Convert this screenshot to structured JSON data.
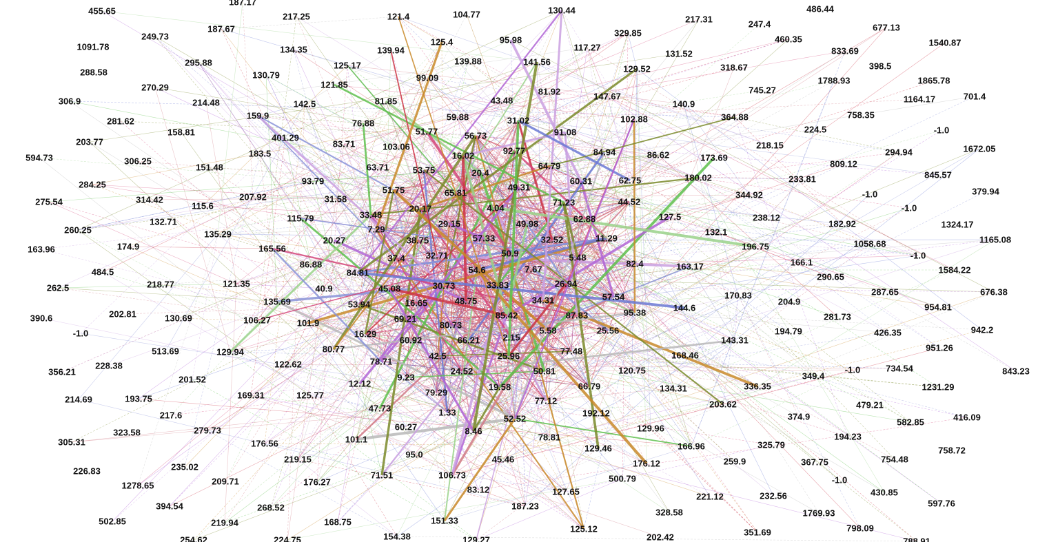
{
  "graph": {
    "edge_colors": [
      "#cc3344",
      "#d4477a",
      "#d07a86",
      "#6b79d4",
      "#8a93d8",
      "#5ec04c",
      "#9ad28a",
      "#b9b9b9",
      "#c98a2a",
      "#b266d6",
      "#caa0e0",
      "#7a8a2a"
    ],
    "nodes": [
      {
        "id": "n1",
        "label": "455.65"
      },
      {
        "id": "n2",
        "label": "187.17"
      },
      {
        "id": "n3",
        "label": "217.25"
      },
      {
        "id": "n4",
        "label": "121.4"
      },
      {
        "id": "n5",
        "label": "104.77"
      },
      {
        "id": "n6",
        "label": "130.44"
      },
      {
        "id": "n7",
        "label": "217.31"
      },
      {
        "id": "n8",
        "label": "486.44"
      },
      {
        "id": "n9",
        "label": "1091.78"
      },
      {
        "id": "n10",
        "label": "249.73"
      },
      {
        "id": "n11",
        "label": "187.67"
      },
      {
        "id": "n12",
        "label": "134.35"
      },
      {
        "id": "n13",
        "label": "139.94"
      },
      {
        "id": "n14",
        "label": "125.4"
      },
      {
        "id": "n15",
        "label": "95.98"
      },
      {
        "id": "n16",
        "label": "117.27"
      },
      {
        "id": "n17",
        "label": "329.85"
      },
      {
        "id": "n18",
        "label": "247.4"
      },
      {
        "id": "n19",
        "label": "460.35"
      },
      {
        "id": "n20",
        "label": "677.13"
      },
      {
        "id": "n21",
        "label": "1540.87"
      },
      {
        "id": "n22",
        "label": "288.58"
      },
      {
        "id": "n23",
        "label": "295.88"
      },
      {
        "id": "n24",
        "label": "125.17"
      },
      {
        "id": "n25",
        "label": "139.88"
      },
      {
        "id": "n26",
        "label": "141.56"
      },
      {
        "id": "n27",
        "label": "131.52"
      },
      {
        "id": "n28",
        "label": "833.69"
      },
      {
        "id": "n29",
        "label": "130.79"
      },
      {
        "id": "n30",
        "label": "99.09"
      },
      {
        "id": "n31",
        "label": "129.52"
      },
      {
        "id": "n32",
        "label": "318.67"
      },
      {
        "id": "n33",
        "label": "398.5"
      },
      {
        "id": "n34",
        "label": "270.29"
      },
      {
        "id": "n35",
        "label": "121.85"
      },
      {
        "id": "n36",
        "label": "81.92"
      },
      {
        "id": "n37",
        "label": "1788.93"
      },
      {
        "id": "n38",
        "label": "1865.78"
      },
      {
        "id": "n39",
        "label": "306.9"
      },
      {
        "id": "n40",
        "label": "214.48"
      },
      {
        "id": "n41",
        "label": "142.5"
      },
      {
        "id": "n42",
        "label": "81.85"
      },
      {
        "id": "n43",
        "label": "43.48"
      },
      {
        "id": "n44",
        "label": "147.67"
      },
      {
        "id": "n45",
        "label": "745.27"
      },
      {
        "id": "n46",
        "label": "1164.17"
      },
      {
        "id": "n47",
        "label": "701.4"
      },
      {
        "id": "n48",
        "label": "159.9"
      },
      {
        "id": "n49",
        "label": "140.9"
      },
      {
        "id": "n50",
        "label": "281.62"
      },
      {
        "id": "n51",
        "label": "59.88"
      },
      {
        "id": "n52",
        "label": "102.88"
      },
      {
        "id": "n53",
        "label": "364.88"
      },
      {
        "id": "n54",
        "label": "758.35"
      },
      {
        "id": "n55",
        "label": "76.88"
      },
      {
        "id": "n56",
        "label": "31.02"
      },
      {
        "id": "n57",
        "label": "158.81"
      },
      {
        "id": "n58",
        "label": "51.77"
      },
      {
        "id": "n59",
        "label": "56.73"
      },
      {
        "id": "n60",
        "label": "91.08"
      },
      {
        "id": "n61",
        "label": "224.5"
      },
      {
        "id": "n62",
        "label": "-1.0"
      },
      {
        "id": "n63",
        "label": "203.77"
      },
      {
        "id": "n64",
        "label": "401.29"
      },
      {
        "id": "n65",
        "label": "83.71"
      },
      {
        "id": "n66",
        "label": "103.06"
      },
      {
        "id": "n67",
        "label": "218.15"
      },
      {
        "id": "n68",
        "label": "594.73"
      },
      {
        "id": "n69",
        "label": "183.5"
      },
      {
        "id": "n70",
        "label": "92.77"
      },
      {
        "id": "n71",
        "label": "84.94"
      },
      {
        "id": "n72",
        "label": "86.62"
      },
      {
        "id": "n73",
        "label": "294.94"
      },
      {
        "id": "n74",
        "label": "1672.05"
      },
      {
        "id": "n75",
        "label": "306.25"
      },
      {
        "id": "n76",
        "label": "16.02"
      },
      {
        "id": "n77",
        "label": "173.69"
      },
      {
        "id": "n78",
        "label": "151.48"
      },
      {
        "id": "n79",
        "label": "63.71"
      },
      {
        "id": "n80",
        "label": "53.75"
      },
      {
        "id": "n81",
        "label": "64.79"
      },
      {
        "id": "n82",
        "label": "809.12"
      },
      {
        "id": "n83",
        "label": "20.4"
      },
      {
        "id": "n84",
        "label": "845.57"
      },
      {
        "id": "n85",
        "label": "284.25"
      },
      {
        "id": "n86",
        "label": "93.79"
      },
      {
        "id": "n87",
        "label": "60.31"
      },
      {
        "id": "n88",
        "label": "62.75"
      },
      {
        "id": "n89",
        "label": "180.02"
      },
      {
        "id": "n90",
        "label": "233.81"
      },
      {
        "id": "n91",
        "label": "49.31"
      },
      {
        "id": "n92",
        "label": "51.75"
      },
      {
        "id": "n93",
        "label": "65.81"
      },
      {
        "id": "n94",
        "label": "344.92"
      },
      {
        "id": "n95",
        "label": "-1.0"
      },
      {
        "id": "n96",
        "label": "379.94"
      },
      {
        "id": "n97",
        "label": "275.54"
      },
      {
        "id": "n98",
        "label": "314.42"
      },
      {
        "id": "n99",
        "label": "207.92"
      },
      {
        "id": "n100",
        "label": "31.58"
      },
      {
        "id": "n101",
        "label": "71.23"
      },
      {
        "id": "n102",
        "label": "44.52"
      },
      {
        "id": "n103",
        "label": "115.6"
      },
      {
        "id": "n104",
        "label": "20.17"
      },
      {
        "id": "n105",
        "label": "4.04"
      },
      {
        "id": "n106",
        "label": "-1.0"
      },
      {
        "id": "n107",
        "label": "33.48"
      },
      {
        "id": "n108",
        "label": "127.5"
      },
      {
        "id": "n109",
        "label": "238.12"
      },
      {
        "id": "n110",
        "label": "132.71"
      },
      {
        "id": "n111",
        "label": "115.79"
      },
      {
        "id": "n112",
        "label": "62.88"
      },
      {
        "id": "n113",
        "label": "182.92"
      },
      {
        "id": "n114",
        "label": "1324.17"
      },
      {
        "id": "n115",
        "label": "29.15"
      },
      {
        "id": "n116",
        "label": "49.98"
      },
      {
        "id": "n117",
        "label": "132.1"
      },
      {
        "id": "n118",
        "label": "260.25"
      },
      {
        "id": "n119",
        "label": "135.29"
      },
      {
        "id": "n120",
        "label": "7.29"
      },
      {
        "id": "n121",
        "label": "32.52"
      },
      {
        "id": "n122",
        "label": "11.29"
      },
      {
        "id": "n123",
        "label": "1165.08"
      },
      {
        "id": "n124",
        "label": "20.27"
      },
      {
        "id": "n125",
        "label": "57.33"
      },
      {
        "id": "n126",
        "label": "38.75"
      },
      {
        "id": "n127",
        "label": "196.75"
      },
      {
        "id": "n128",
        "label": "1058.68"
      },
      {
        "id": "n129",
        "label": "163.96"
      },
      {
        "id": "n130",
        "label": "174.9"
      },
      {
        "id": "n131",
        "label": "165.56"
      },
      {
        "id": "n132",
        "label": "50.9"
      },
      {
        "id": "n133",
        "label": "5.48"
      },
      {
        "id": "n134",
        "label": "-1.0"
      },
      {
        "id": "n135",
        "label": "37.4"
      },
      {
        "id": "n136",
        "label": "32.71"
      },
      {
        "id": "n137",
        "label": "82.4"
      },
      {
        "id": "n138",
        "label": "166.1"
      },
      {
        "id": "n139",
        "label": "86.88"
      },
      {
        "id": "n140",
        "label": "163.17"
      },
      {
        "id": "n141",
        "label": "1584.22"
      },
      {
        "id": "n142",
        "label": "484.5"
      },
      {
        "id": "n143",
        "label": "54.6"
      },
      {
        "id": "n144",
        "label": "7.67"
      },
      {
        "id": "n145",
        "label": "84.81"
      },
      {
        "id": "n146",
        "label": "290.65"
      },
      {
        "id": "n147",
        "label": "262.5"
      },
      {
        "id": "n148",
        "label": "218.77"
      },
      {
        "id": "n149",
        "label": "121.35"
      },
      {
        "id": "n150",
        "label": "40.9"
      },
      {
        "id": "n151",
        "label": "45.08"
      },
      {
        "id": "n152",
        "label": "30.73"
      },
      {
        "id": "n153",
        "label": "33.83"
      },
      {
        "id": "n154",
        "label": "26.94"
      },
      {
        "id": "n155",
        "label": "676.38"
      },
      {
        "id": "n156",
        "label": "135.69"
      },
      {
        "id": "n157",
        "label": "57.54"
      },
      {
        "id": "n158",
        "label": "170.83"
      },
      {
        "id": "n159",
        "label": "287.65"
      },
      {
        "id": "n160",
        "label": "53.94"
      },
      {
        "id": "n161",
        "label": "16.65"
      },
      {
        "id": "n162",
        "label": "48.75"
      },
      {
        "id": "n163",
        "label": "34.31"
      },
      {
        "id": "n164",
        "label": "204.9"
      },
      {
        "id": "n165",
        "label": "390.6"
      },
      {
        "id": "n166",
        "label": "202.81"
      },
      {
        "id": "n167",
        "label": "130.69"
      },
      {
        "id": "n168",
        "label": "106.27"
      },
      {
        "id": "n169",
        "label": "144.6"
      },
      {
        "id": "n170",
        "label": "954.81"
      },
      {
        "id": "n171",
        "label": "101.9"
      },
      {
        "id": "n172",
        "label": "69.21"
      },
      {
        "id": "n173",
        "label": "85.42"
      },
      {
        "id": "n174",
        "label": "87.83"
      },
      {
        "id": "n175",
        "label": "95.38"
      },
      {
        "id": "n176",
        "label": "281.73"
      },
      {
        "id": "n177",
        "label": "-1.0"
      },
      {
        "id": "n178",
        "label": "80.73"
      },
      {
        "id": "n179",
        "label": "25.56"
      },
      {
        "id": "n180",
        "label": "194.79"
      },
      {
        "id": "n181",
        "label": "426.35"
      },
      {
        "id": "n182",
        "label": "942.2"
      },
      {
        "id": "n183",
        "label": "16.29"
      },
      {
        "id": "n184",
        "label": "60.92"
      },
      {
        "id": "n185",
        "label": "66.21"
      },
      {
        "id": "n186",
        "label": "2.15"
      },
      {
        "id": "n187",
        "label": "5.58"
      },
      {
        "id": "n188",
        "label": "143.31"
      },
      {
        "id": "n189",
        "label": "951.26"
      },
      {
        "id": "n190",
        "label": "513.69"
      },
      {
        "id": "n191",
        "label": "129.94"
      },
      {
        "id": "n192",
        "label": "80.77"
      },
      {
        "id": "n193",
        "label": "77.48"
      },
      {
        "id": "n194",
        "label": "168.46"
      },
      {
        "id": "n195",
        "label": "228.38"
      },
      {
        "id": "n196",
        "label": "78.71"
      },
      {
        "id": "n197",
        "label": "42.5"
      },
      {
        "id": "n198",
        "label": "25.96"
      },
      {
        "id": "n199",
        "label": "122.62"
      },
      {
        "id": "n200",
        "label": "120.75"
      },
      {
        "id": "n201",
        "label": "-1.0"
      },
      {
        "id": "n202",
        "label": "734.54"
      },
      {
        "id": "n203",
        "label": "843.23"
      },
      {
        "id": "n204",
        "label": "356.21"
      },
      {
        "id": "n205",
        "label": "24.52"
      },
      {
        "id": "n206",
        "label": "50.81"
      },
      {
        "id": "n207",
        "label": "349.4"
      },
      {
        "id": "n208",
        "label": "201.52"
      },
      {
        "id": "n209",
        "label": "9.23"
      },
      {
        "id": "n210",
        "label": "12.12"
      },
      {
        "id": "n211",
        "label": "19.58"
      },
      {
        "id": "n212",
        "label": "66.79"
      },
      {
        "id": "n213",
        "label": "134.31"
      },
      {
        "id": "n214",
        "label": "336.35"
      },
      {
        "id": "n215",
        "label": "1231.29"
      },
      {
        "id": "n216",
        "label": "214.69"
      },
      {
        "id": "n217",
        "label": "193.75"
      },
      {
        "id": "n218",
        "label": "169.31"
      },
      {
        "id": "n219",
        "label": "125.77"
      },
      {
        "id": "n220",
        "label": "79.29"
      },
      {
        "id": "n221",
        "label": "77.12"
      },
      {
        "id": "n222",
        "label": "203.62"
      },
      {
        "id": "n223",
        "label": "479.21"
      },
      {
        "id": "n224",
        "label": "217.6"
      },
      {
        "id": "n225",
        "label": "47.73"
      },
      {
        "id": "n226",
        "label": "1.33"
      },
      {
        "id": "n227",
        "label": "192.12"
      },
      {
        "id": "n228",
        "label": "374.9"
      },
      {
        "id": "n229",
        "label": "582.85"
      },
      {
        "id": "n230",
        "label": "416.09"
      },
      {
        "id": "n231",
        "label": "323.58"
      },
      {
        "id": "n232",
        "label": "279.73"
      },
      {
        "id": "n233",
        "label": "52.52"
      },
      {
        "id": "n234",
        "label": "60.27"
      },
      {
        "id": "n235",
        "label": "8.46"
      },
      {
        "id": "n236",
        "label": "78.81"
      },
      {
        "id": "n237",
        "label": "129.96"
      },
      {
        "id": "n238",
        "label": "194.23"
      },
      {
        "id": "n239",
        "label": "305.31"
      },
      {
        "id": "n240",
        "label": "176.56"
      },
      {
        "id": "n241",
        "label": "101.1"
      },
      {
        "id": "n242",
        "label": "325.79"
      },
      {
        "id": "n243",
        "label": "758.72"
      },
      {
        "id": "n244",
        "label": "166.96"
      },
      {
        "id": "n245",
        "label": "129.46"
      },
      {
        "id": "n246",
        "label": "219.15"
      },
      {
        "id": "n247",
        "label": "95.0"
      },
      {
        "id": "n248",
        "label": "45.46"
      },
      {
        "id": "n249",
        "label": "259.9"
      },
      {
        "id": "n250",
        "label": "367.75"
      },
      {
        "id": "n251",
        "label": "754.48"
      },
      {
        "id": "n252",
        "label": "226.83"
      },
      {
        "id": "n253",
        "label": "235.02"
      },
      {
        "id": "n254",
        "label": "176.12"
      },
      {
        "id": "n255",
        "label": "106.73"
      },
      {
        "id": "n256",
        "label": "-1.0"
      },
      {
        "id": "n257",
        "label": "1278.65"
      },
      {
        "id": "n258",
        "label": "209.71"
      },
      {
        "id": "n259",
        "label": "71.51"
      },
      {
        "id": "n260",
        "label": "176.27"
      },
      {
        "id": "n261",
        "label": "500.79"
      },
      {
        "id": "n262",
        "label": "430.85"
      },
      {
        "id": "n263",
        "label": "83.12"
      },
      {
        "id": "n264",
        "label": "127.65"
      },
      {
        "id": "n265",
        "label": "221.12"
      },
      {
        "id": "n266",
        "label": "232.56"
      },
      {
        "id": "n267",
        "label": "597.76"
      },
      {
        "id": "n268",
        "label": "394.54"
      },
      {
        "id": "n269",
        "label": "268.52"
      },
      {
        "id": "n270",
        "label": "187.23"
      },
      {
        "id": "n271",
        "label": "328.58"
      },
      {
        "id": "n272",
        "label": "1769.93"
      },
      {
        "id": "n273",
        "label": "502.85"
      },
      {
        "id": "n274",
        "label": "219.94"
      },
      {
        "id": "n275",
        "label": "168.75"
      },
      {
        "id": "n276",
        "label": "151.33"
      },
      {
        "id": "n277",
        "label": "125.12"
      },
      {
        "id": "n278",
        "label": "351.69"
      },
      {
        "id": "n279",
        "label": "798.09"
      },
      {
        "id": "n280",
        "label": "154.38"
      },
      {
        "id": "n281",
        "label": "202.42"
      },
      {
        "id": "n282",
        "label": "254.62"
      },
      {
        "id": "n283",
        "label": "224.75"
      },
      {
        "id": "n284",
        "label": "129.27"
      },
      {
        "id": "n285",
        "label": "788.91"
      }
    ]
  }
}
